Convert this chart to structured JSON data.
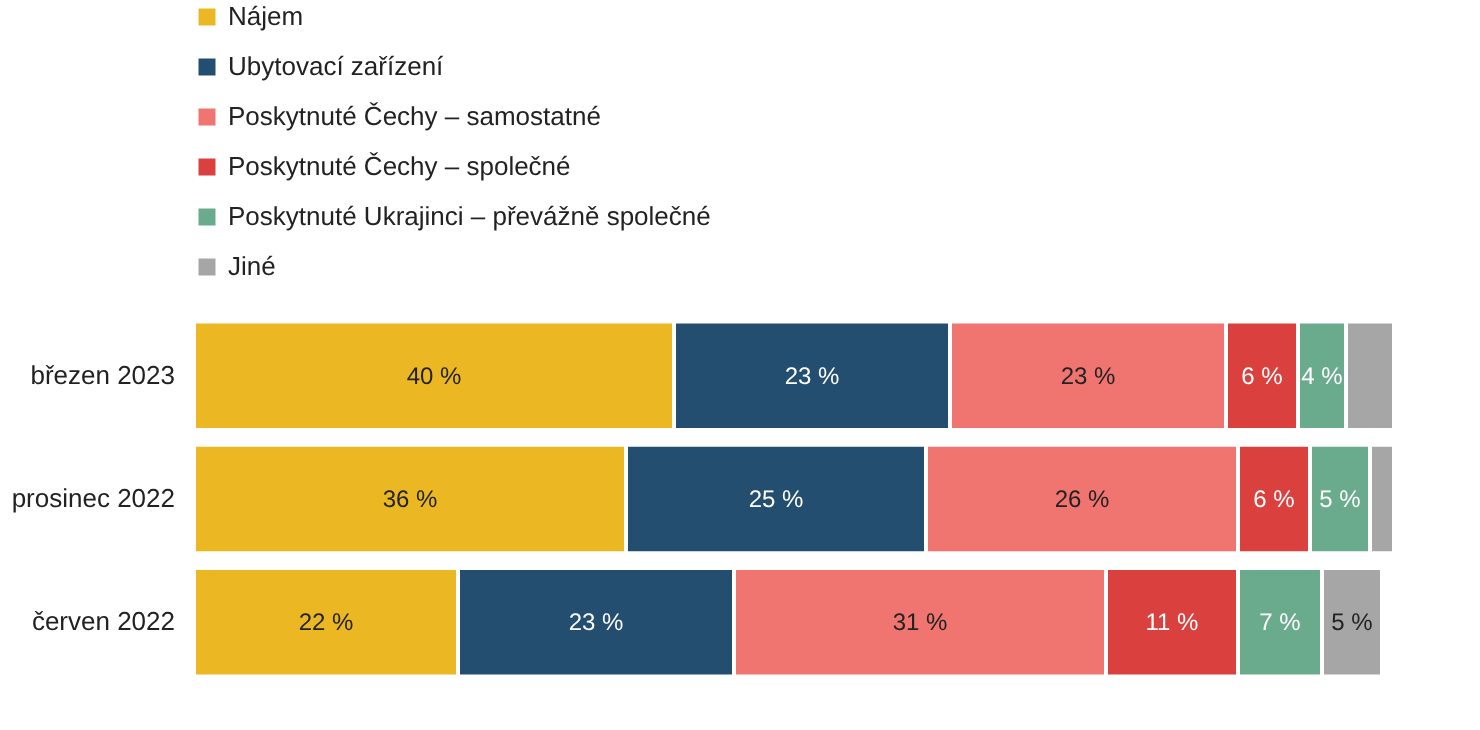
{
  "chart_data": {
    "type": "bar",
    "orientation": "horizontal",
    "stacked": true,
    "legend": "top left",
    "categories": [
      "březen 2023",
      "prosinec 2022",
      "červen 2022"
    ],
    "series": [
      {
        "name": "Nájem",
        "color": "#ebb824",
        "values": [
          40,
          36,
          22
        ],
        "value_labels": [
          "40 %",
          "36 %",
          "22 %"
        ]
      },
      {
        "name": "Ubytovací zařízení",
        "color": "#234e70",
        "values": [
          23,
          25,
          23
        ],
        "value_labels": [
          "23 %",
          "25 %",
          "23 %"
        ]
      },
      {
        "name": "Poskytnuté Čechy – samostatné",
        "color": "#f07470",
        "values": [
          23,
          26,
          31
        ],
        "value_labels": [
          "23 %",
          "26 %",
          "31 %"
        ]
      },
      {
        "name": "Poskytnuté Čechy – společné",
        "color": "#d9403e",
        "values": [
          6,
          6,
          11
        ],
        "value_labels": [
          "6 %",
          "6 %",
          "11 %"
        ]
      },
      {
        "name": "Poskytnuté Ukrajinci – převážně společné",
        "color": "#6aab8e",
        "values": [
          4,
          5,
          7
        ],
        "value_labels": [
          "4 %",
          "5 %",
          "7 %"
        ]
      },
      {
        "name": "Jiné",
        "color": "#a6a6a6",
        "values": [
          4,
          2,
          5
        ],
        "value_labels": [
          null,
          null,
          "5 %"
        ]
      }
    ]
  }
}
